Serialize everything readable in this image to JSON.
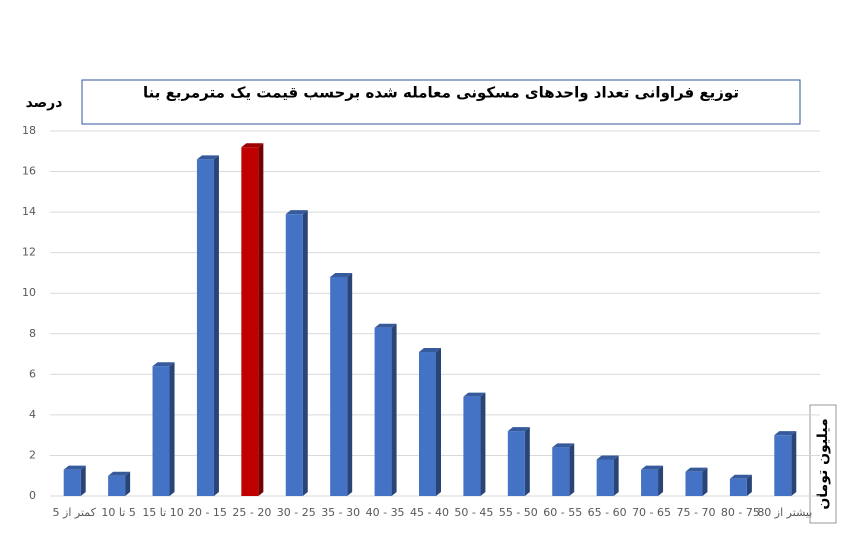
{
  "chart_data": {
    "type": "bar",
    "title": "توزیع فراوانی تعداد واحدهای مسکونی معامله شده برحسب قیمت یک مترمربع بنا",
    "y_label": "درصد",
    "x_label": "میلیون تومان",
    "categories": [
      "کمتر از 5",
      "5 تا 10",
      "10 تا 15",
      "15 - 20",
      "20 - 25",
      "25 - 30",
      "30 - 35",
      "35 - 40",
      "40 - 45",
      "45 - 50",
      "50 - 55",
      "55 - 60",
      "60 - 65",
      "65 - 70",
      "70 - 75",
      "75 - 80",
      "بیشتر از 80"
    ],
    "values": [
      1.3,
      1.0,
      6.4,
      16.6,
      17.2,
      13.9,
      10.8,
      8.3,
      7.1,
      4.9,
      3.2,
      2.4,
      1.8,
      1.3,
      1.2,
      0.85,
      3.0
    ],
    "colors": [
      "#4472c4",
      "#4472c4",
      "#4472c4",
      "#4472c4",
      "#c00000",
      "#4472c4",
      "#4472c4",
      "#4472c4",
      "#4472c4",
      "#4472c4",
      "#4472c4",
      "#4472c4",
      "#4472c4",
      "#4472c4",
      "#4472c4",
      "#4472c4",
      "#4472c4"
    ],
    "ylim": [
      0,
      18
    ],
    "yticks": [
      0,
      2,
      4,
      6,
      8,
      10,
      12,
      14,
      16,
      18
    ],
    "grid": true
  }
}
